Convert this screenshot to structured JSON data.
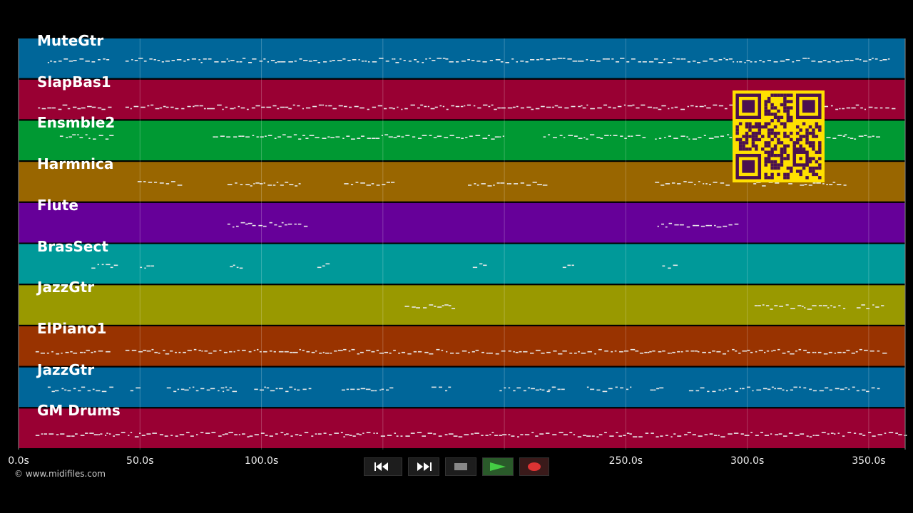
{
  "tracks": [
    {
      "name": "MuteGtr",
      "color": "#006699"
    },
    {
      "name": "SlapBas1",
      "color": "#990033"
    },
    {
      "name": "Ensmble2",
      "color": "#009933"
    },
    {
      "name": "Harmnica",
      "color": "#996600"
    },
    {
      "name": "Flute",
      "color": "#660099"
    },
    {
      "name": "BrasSect",
      "color": "#009999"
    },
    {
      "name": "JazzGtr",
      "color": "#999900"
    },
    {
      "name": "ElPiano1",
      "color": "#993300"
    },
    {
      "name": "JazzGtr",
      "color": "#006699"
    },
    {
      "name": "GM Drums",
      "color": "#990033"
    }
  ],
  "timeline": {
    "unit": "s",
    "ticks": [
      {
        "value": 0,
        "label": "0.0s"
      },
      {
        "value": 50,
        "label": "50.0s"
      },
      {
        "value": 100,
        "label": "100.0s"
      },
      {
        "value": 150,
        "label": ""
      },
      {
        "value": 200,
        "label": ""
      },
      {
        "value": 250,
        "label": "250.0s"
      },
      {
        "value": 300,
        "label": "300.0s"
      },
      {
        "value": 350,
        "label": "350.0s"
      }
    ],
    "end": 365
  },
  "copyright": "© www.midifiles.com",
  "transport": {
    "rewind": "rewind-icon",
    "fast_forward": "fast-forward-icon",
    "stop": "stop-icon",
    "play": "play-icon",
    "record": "record-icon"
  },
  "qr_code": "qr-code-icon",
  "colors": {
    "play": "#44cc44",
    "record": "#dd3333",
    "stop": "#888888",
    "qr_bg": "#ffe000",
    "qr_fg": "#4a1050"
  }
}
